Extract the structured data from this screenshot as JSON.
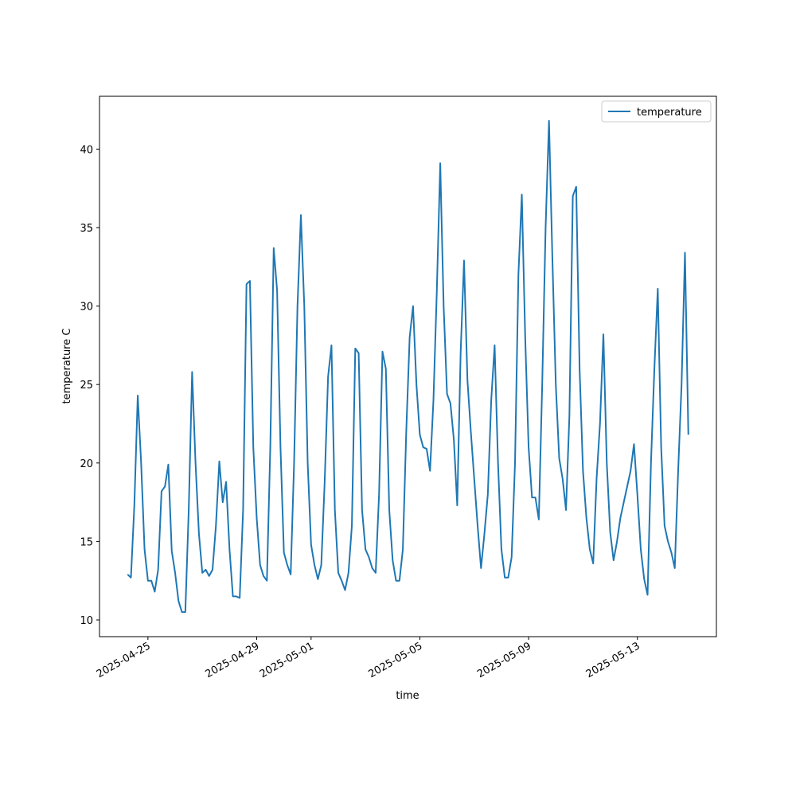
{
  "chart_data": {
    "type": "line",
    "xlabel": "time",
    "ylabel": "temperature C",
    "x": [
      "2025-04-24 06:00",
      "2025-04-24 09:00",
      "2025-04-24 12:00",
      "2025-04-24 15:00",
      "2025-04-24 18:00",
      "2025-04-24 21:00",
      "2025-04-25 00:00",
      "2025-04-25 03:00",
      "2025-04-25 06:00",
      "2025-04-25 09:00",
      "2025-04-25 12:00",
      "2025-04-25 15:00",
      "2025-04-25 18:00",
      "2025-04-25 21:00",
      "2025-04-26 00:00",
      "2025-04-26 03:00",
      "2025-04-26 06:00",
      "2025-04-26 09:00",
      "2025-04-26 12:00",
      "2025-04-26 15:00",
      "2025-04-26 18:00",
      "2025-04-26 21:00",
      "2025-04-27 00:00",
      "2025-04-27 03:00",
      "2025-04-27 06:00",
      "2025-04-27 09:00",
      "2025-04-27 12:00",
      "2025-04-27 15:00",
      "2025-04-27 18:00",
      "2025-04-27 21:00",
      "2025-04-28 00:00",
      "2025-04-28 03:00",
      "2025-04-28 06:00",
      "2025-04-28 09:00",
      "2025-04-28 12:00",
      "2025-04-28 15:00",
      "2025-04-28 18:00",
      "2025-04-28 21:00",
      "2025-04-29 00:00",
      "2025-04-29 03:00",
      "2025-04-29 06:00",
      "2025-04-29 09:00",
      "2025-04-29 12:00",
      "2025-04-29 15:00",
      "2025-04-29 18:00",
      "2025-04-29 21:00",
      "2025-04-30 00:00",
      "2025-04-30 03:00",
      "2025-04-30 06:00",
      "2025-04-30 09:00",
      "2025-04-30 12:00",
      "2025-04-30 15:00",
      "2025-04-30 18:00",
      "2025-04-30 21:00",
      "2025-05-01 00:00",
      "2025-05-01 03:00",
      "2025-05-01 06:00",
      "2025-05-01 09:00",
      "2025-05-01 12:00",
      "2025-05-01 15:00",
      "2025-05-01 18:00",
      "2025-05-01 21:00",
      "2025-05-02 00:00",
      "2025-05-02 03:00",
      "2025-05-02 06:00",
      "2025-05-02 09:00",
      "2025-05-02 12:00",
      "2025-05-02 15:00",
      "2025-05-02 18:00",
      "2025-05-02 21:00",
      "2025-05-03 00:00",
      "2025-05-03 03:00",
      "2025-05-03 06:00",
      "2025-05-03 09:00",
      "2025-05-03 12:00",
      "2025-05-03 15:00",
      "2025-05-03 18:00",
      "2025-05-03 21:00",
      "2025-05-04 00:00",
      "2025-05-04 03:00",
      "2025-05-04 06:00",
      "2025-05-04 09:00",
      "2025-05-04 12:00",
      "2025-05-04 15:00",
      "2025-05-04 18:00",
      "2025-05-04 21:00",
      "2025-05-05 00:00",
      "2025-05-05 03:00",
      "2025-05-05 06:00",
      "2025-05-05 09:00",
      "2025-05-05 12:00",
      "2025-05-05 15:00",
      "2025-05-05 18:00",
      "2025-05-05 21:00",
      "2025-05-06 00:00",
      "2025-05-06 03:00",
      "2025-05-06 06:00",
      "2025-05-06 09:00",
      "2025-05-06 12:00",
      "2025-05-06 15:00",
      "2025-05-06 18:00",
      "2025-05-06 21:00",
      "2025-05-07 00:00",
      "2025-05-07 03:00",
      "2025-05-07 06:00",
      "2025-05-07 09:00",
      "2025-05-07 12:00",
      "2025-05-07 15:00",
      "2025-05-07 18:00",
      "2025-05-07 21:00",
      "2025-05-08 00:00",
      "2025-05-08 03:00",
      "2025-05-08 06:00",
      "2025-05-08 09:00",
      "2025-05-08 12:00",
      "2025-05-08 15:00",
      "2025-05-08 18:00",
      "2025-05-08 21:00",
      "2025-05-09 00:00",
      "2025-05-09 03:00",
      "2025-05-09 06:00",
      "2025-05-09 09:00",
      "2025-05-09 12:00",
      "2025-05-09 15:00",
      "2025-05-09 18:00",
      "2025-05-09 21:00",
      "2025-05-10 00:00",
      "2025-05-10 03:00",
      "2025-05-10 06:00",
      "2025-05-10 09:00",
      "2025-05-10 12:00",
      "2025-05-10 15:00",
      "2025-05-10 18:00",
      "2025-05-10 21:00",
      "2025-05-11 00:00",
      "2025-05-11 03:00",
      "2025-05-11 06:00",
      "2025-05-11 09:00",
      "2025-05-11 12:00",
      "2025-05-11 15:00",
      "2025-05-11 18:00",
      "2025-05-11 21:00",
      "2025-05-12 00:00",
      "2025-05-12 03:00",
      "2025-05-12 06:00",
      "2025-05-12 09:00",
      "2025-05-12 12:00",
      "2025-05-12 15:00",
      "2025-05-12 18:00",
      "2025-05-12 21:00",
      "2025-05-13 00:00",
      "2025-05-13 03:00",
      "2025-05-13 06:00",
      "2025-05-13 09:00",
      "2025-05-13 12:00",
      "2025-05-13 15:00",
      "2025-05-13 18:00",
      "2025-05-13 21:00",
      "2025-05-14 00:00",
      "2025-05-14 03:00",
      "2025-05-14 06:00",
      "2025-05-14 09:00",
      "2025-05-14 12:00",
      "2025-05-14 15:00",
      "2025-05-14 18:00",
      "2025-05-14 21:00"
    ],
    "series": [
      {
        "name": "temperature",
        "color": "#1f77b4",
        "values": [
          12.9,
          12.7,
          17.3,
          24.3,
          20,
          14.5,
          12.5,
          12.5,
          11.8,
          13.2,
          18.2,
          18.5,
          19.9,
          14.4,
          13,
          11.2,
          10.5,
          10.5,
          17,
          25.8,
          20,
          15.5,
          13,
          13.2,
          12.8,
          13.2,
          16,
          20.1,
          17.5,
          18.8,
          14.5,
          11.5,
          11.5,
          11.4,
          17,
          31.4,
          31.6,
          21,
          16.5,
          13.5,
          12.8,
          12.5,
          21,
          33.7,
          31,
          21,
          14.3,
          13.5,
          12.9,
          20,
          30,
          35.8,
          30,
          20,
          14.8,
          13.5,
          12.6,
          13.5,
          18.8,
          25.5,
          27.5,
          17,
          13,
          12.5,
          11.9,
          13,
          16,
          27.3,
          27,
          17,
          14.5,
          14,
          13.3,
          13,
          18,
          27.1,
          26,
          17,
          13.8,
          12.5,
          12.5,
          14.5,
          22,
          28,
          30,
          25,
          21.8,
          21,
          20.9,
          19.5,
          24,
          31,
          39.1,
          30,
          24.4,
          23.8,
          21.5,
          17.3,
          27,
          32.9,
          25.3,
          22,
          19,
          16,
          13.3,
          15.5,
          18,
          24,
          27.5,
          20,
          14.5,
          12.7,
          12.7,
          14,
          20,
          32,
          37.1,
          28,
          21,
          17.8,
          17.8,
          16.4,
          25,
          35,
          41.8,
          33,
          25,
          20.3,
          19,
          17,
          23,
          37,
          37.6,
          26,
          19.5,
          16.5,
          14.5,
          13.6,
          19,
          22.5,
          28.2,
          20,
          15.6,
          13.8,
          15,
          16.5,
          17.5,
          18.5,
          19.5,
          21.2,
          18,
          14.5,
          12.6,
          11.6,
          20,
          26,
          31.1,
          21,
          16,
          15,
          14.3,
          13.3,
          19.5,
          25,
          33.4,
          21.8
        ]
      }
    ],
    "xlim": [
      "2025-04-23 05:15",
      "2025-05-15 21:45"
    ],
    "xticks": [
      "2025-04-25",
      "2025-04-29",
      "2025-05-01",
      "2025-05-05",
      "2025-05-09",
      "2025-05-13"
    ],
    "ylim": [
      8.935,
      43.365
    ],
    "yticks": [
      10,
      15,
      20,
      25,
      30,
      35,
      40
    ],
    "legend": "upper right"
  }
}
